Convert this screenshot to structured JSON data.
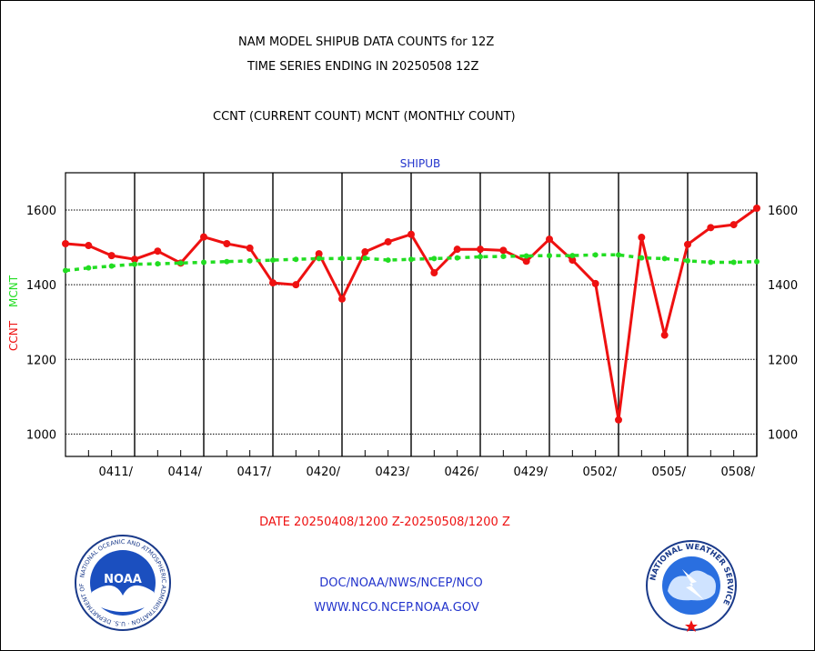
{
  "header": {
    "line1": "NAM MODEL SHIPUB DATA COUNTS for 12Z",
    "line2": "TIME SERIES ENDING IN 20250508 12Z",
    "line3": "CCNT (CURRENT COUNT) MCNT (MONTHLY COUNT)"
  },
  "footer": {
    "date_range": "DATE 20250408/1200 Z-20250508/1200 Z",
    "org": "DOC/NOAA/NWS/NCEP/NCO",
    "url": "WWW.NCO.NCEP.NOAA.GOV",
    "noaa_logo_text": "NOAA",
    "noaa_ring_text": "NATIONAL OCEANIC AND ATMOSPHERIC ADMINISTRATION · U.S. DEPARTMENT OF COMMERCE ·",
    "nws_ring_text": "NATIONAL WEATHER SERVICE"
  },
  "colors": {
    "ccnt": "#ee1111",
    "mcnt": "#22dd22",
    "title": "#2233cc",
    "date": "#ee1111",
    "footer": "#2233cc"
  },
  "chart_data": {
    "type": "line",
    "title": "SHIPUB",
    "ylabel_ccnt": "CCNT",
    "ylabel_mcnt": "MCNT",
    "ylim": [
      940,
      1700
    ],
    "yticks": [
      1000,
      1200,
      1400,
      1600
    ],
    "x_labels": [
      "0411/",
      "0414/",
      "0417/",
      "0420/",
      "0423/",
      "0426/",
      "0429/",
      "0502/",
      "0505/",
      "0508/"
    ],
    "x_label_days": [
      3,
      6,
      9,
      12,
      15,
      18,
      21,
      24,
      27,
      30
    ],
    "x_range_days": [
      0,
      30
    ],
    "grid": true,
    "series": [
      {
        "name": "CCNT",
        "style": "solid",
        "x": [
          0,
          1,
          2,
          3,
          4,
          5,
          6,
          7,
          8,
          9,
          10,
          11,
          12,
          13,
          14,
          15,
          16,
          17,
          18,
          19,
          20,
          21,
          22,
          23,
          24,
          25,
          26,
          27,
          28,
          29,
          30
        ],
        "values": [
          1510,
          1505,
          1478,
          1468,
          1490,
          1458,
          1528,
          1510,
          1498,
          1405,
          1400,
          1483,
          1362,
          1488,
          1515,
          1535,
          1432,
          1495,
          1495,
          1492,
          1463,
          1522,
          1466,
          1403,
          1038,
          1527,
          1265,
          1508,
          1553,
          1561,
          1605
        ]
      },
      {
        "name": "MCNT",
        "style": "dashed",
        "x": [
          0,
          1,
          2,
          3,
          4,
          5,
          6,
          7,
          8,
          9,
          10,
          11,
          12,
          13,
          14,
          15,
          16,
          17,
          18,
          19,
          20,
          21,
          22,
          23,
          24,
          25,
          26,
          27,
          28,
          29,
          30
        ],
        "values": [
          1438,
          1445,
          1450,
          1455,
          1456,
          1458,
          1460,
          1462,
          1464,
          1466,
          1468,
          1470,
          1470,
          1471,
          1466,
          1468,
          1470,
          1472,
          1475,
          1476,
          1477,
          1478,
          1478,
          1480,
          1480,
          1472,
          1470,
          1464,
          1460,
          1460,
          1462
        ]
      }
    ]
  }
}
